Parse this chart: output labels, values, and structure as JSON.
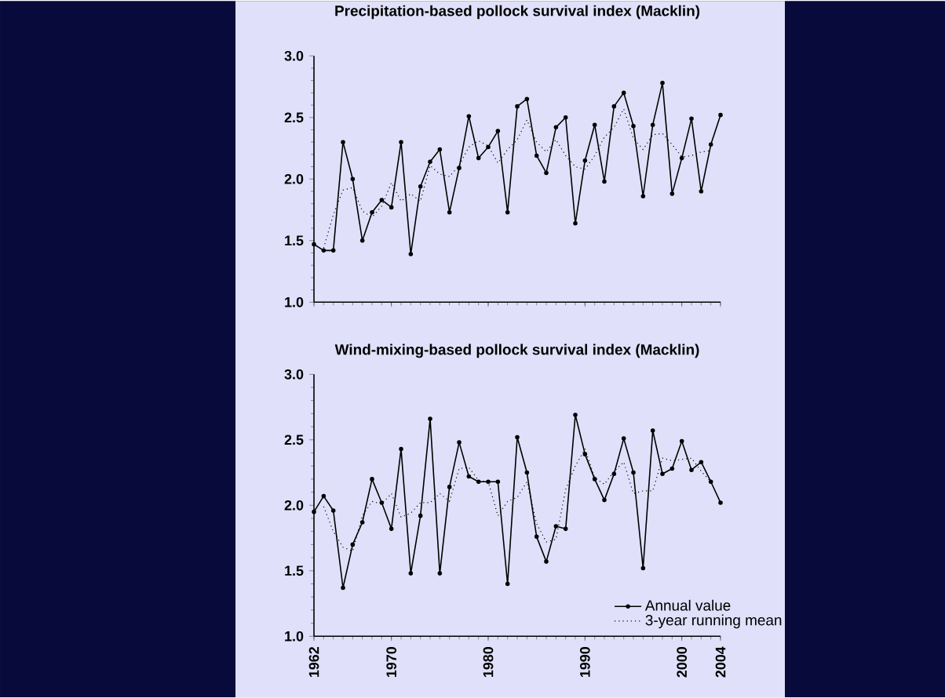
{
  "chart_data": [
    {
      "type": "line",
      "title": "Precipitation-based pollock survival index (Macklin)",
      "x": [
        1962,
        1963,
        1964,
        1965,
        1966,
        1967,
        1968,
        1969,
        1970,
        1971,
        1972,
        1973,
        1974,
        1975,
        1976,
        1977,
        1978,
        1979,
        1980,
        1981,
        1982,
        1983,
        1984,
        1985,
        1986,
        1987,
        1988,
        1989,
        1990,
        1991,
        1992,
        1993,
        1994,
        1995,
        1996,
        1997,
        1998,
        1999,
        2000,
        2001,
        2002,
        2003,
        2004
      ],
      "xlim": [
        1962,
        2004
      ],
      "xticks": [
        1962,
        1970,
        1980,
        1990,
        2000,
        2004
      ],
      "ylim": [
        1,
        3
      ],
      "yticks": [
        {
          "value": 1,
          "label": "1.0"
        },
        {
          "value": 1.5,
          "label": "1.5"
        },
        {
          "value": 2,
          "label": "2.0"
        },
        {
          "value": 2.5,
          "label": "2.5"
        },
        {
          "value": 3,
          "label": "3.0"
        }
      ],
      "tick_labels": "y",
      "series": [
        {
          "color": "#000000",
          "marker": "circle",
          "line_style": "solid",
          "values": [
            1.47,
            1.42,
            1.42,
            2.3,
            2.0,
            1.5,
            1.73,
            1.83,
            1.77,
            2.3,
            1.39,
            1.94,
            2.14,
            2.24,
            1.73,
            2.09,
            2.51,
            2.17,
            2.26,
            2.39,
            1.73,
            2.59,
            2.65,
            2.19,
            2.05,
            2.42,
            2.5,
            1.64,
            2.15,
            2.44,
            1.98,
            2.59,
            2.7,
            2.43,
            1.86,
            2.44,
            2.78,
            1.88,
            2.17,
            2.49,
            1.9,
            2.28,
            2.52
          ]
        },
        {
          "color": "#000000",
          "marker": "none",
          "line_style": "dotted",
          "values": [
            null,
            1.44,
            1.71,
            1.91,
            1.93,
            1.74,
            1.69,
            1.78,
            1.97,
            1.82,
            1.88,
            1.82,
            2.11,
            2.04,
            2.02,
            2.11,
            2.26,
            2.31,
            2.27,
            2.13,
            2.24,
            2.32,
            2.48,
            2.3,
            2.22,
            2.32,
            2.19,
            2.1,
            2.08,
            2.19,
            2.34,
            2.42,
            2.57,
            2.33,
            2.24,
            2.36,
            2.37,
            2.28,
            2.18,
            2.19,
            2.22,
            2.23,
            null
          ]
        }
      ]
    },
    {
      "type": "line",
      "title": "Wind-mixing-based pollock survival index (Macklin)",
      "x": [
        1962,
        1963,
        1964,
        1965,
        1966,
        1967,
        1968,
        1969,
        1970,
        1971,
        1972,
        1973,
        1974,
        1975,
        1976,
        1977,
        1978,
        1979,
        1980,
        1981,
        1982,
        1983,
        1984,
        1985,
        1986,
        1987,
        1988,
        1989,
        1990,
        1991,
        1992,
        1993,
        1994,
        1995,
        1996,
        1997,
        1998,
        1999,
        2000,
        2001,
        2002,
        2003,
        2004
      ],
      "xlim": [
        1962,
        2004
      ],
      "xticks": [
        1962,
        1970,
        1980,
        1990,
        2000,
        2004
      ],
      "ylim": [
        1,
        3
      ],
      "yticks": [
        {
          "value": 1,
          "label": "1.0"
        },
        {
          "value": 1.5,
          "label": "1.5"
        },
        {
          "value": 2,
          "label": "2.0"
        },
        {
          "value": 2.5,
          "label": "2.5"
        },
        {
          "value": 3,
          "label": "3.0"
        }
      ],
      "legend": "bottom right",
      "series": [
        {
          "name": "Annual value",
          "color": "#000000",
          "marker": "circle",
          "line_style": "solid",
          "values": [
            1.95,
            2.07,
            1.96,
            1.37,
            1.7,
            1.87,
            2.2,
            2.02,
            1.82,
            2.43,
            1.48,
            1.92,
            2.66,
            1.48,
            2.14,
            2.48,
            2.22,
            2.18,
            2.18,
            2.18,
            1.4,
            2.52,
            2.25,
            1.76,
            1.57,
            1.84,
            1.82,
            2.69,
            2.39,
            2.2,
            2.04,
            2.24,
            2.51,
            2.25,
            1.52,
            2.57,
            2.24,
            2.28,
            2.49,
            2.27,
            2.33,
            2.18,
            2.02
          ]
        },
        {
          "name": "3-year running mean",
          "color": "#000000",
          "marker": "none",
          "line_style": "dotted",
          "values": [
            null,
            1.99,
            1.8,
            1.68,
            1.65,
            1.92,
            2.03,
            2.01,
            2.09,
            1.91,
            1.94,
            2.02,
            2.02,
            2.09,
            2.03,
            2.28,
            2.29,
            2.19,
            2.18,
            1.92,
            2.03,
            2.06,
            2.18,
            1.86,
            1.72,
            1.74,
            2.12,
            2.3,
            2.43,
            2.21,
            2.16,
            2.26,
            2.33,
            2.09,
            2.11,
            2.11,
            2.36,
            2.34,
            2.35,
            2.36,
            2.26,
            2.18,
            null
          ]
        }
      ]
    }
  ]
}
